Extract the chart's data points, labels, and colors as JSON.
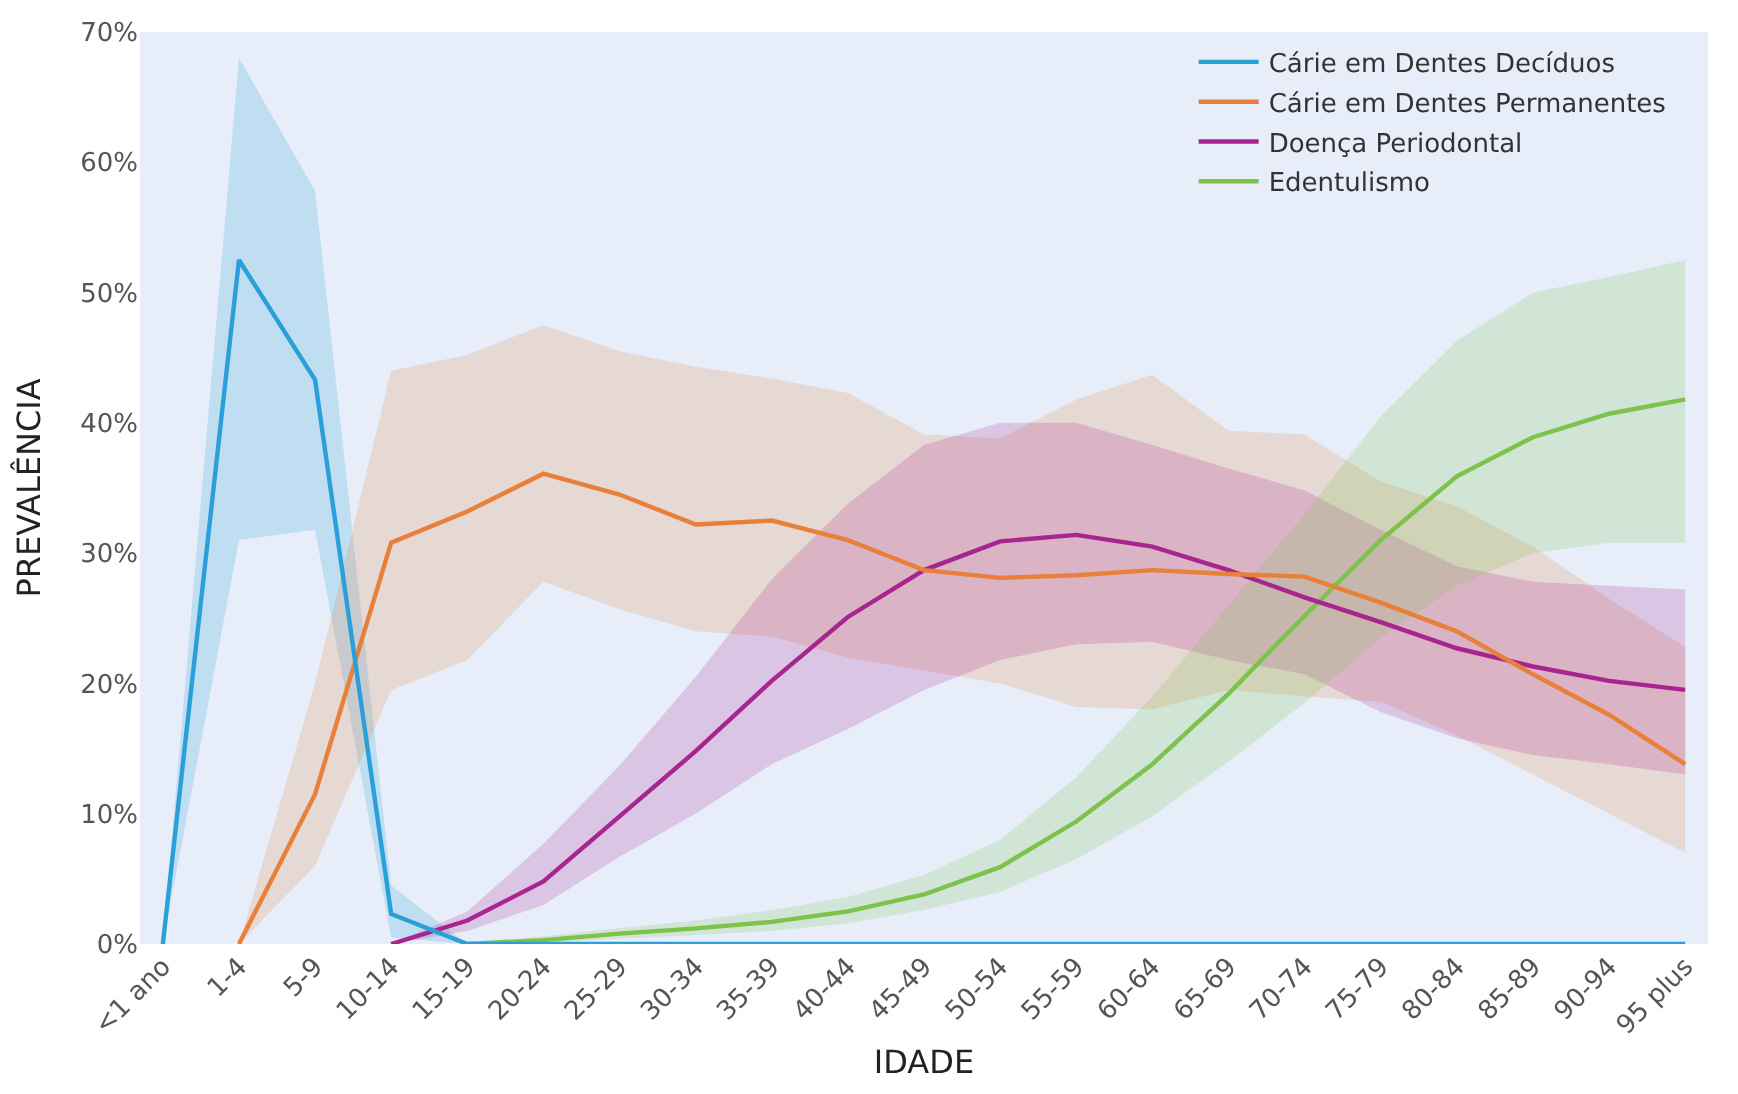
{
  "chart_data": {
    "type": "line",
    "xlabel": "IDADE",
    "ylabel": "PREVALÊNCIA",
    "legend": "top right",
    "grid": false,
    "marker": "none",
    "line_style": "solid",
    "categories": [
      "<1 ano",
      "1-4",
      "5-9",
      "10-14",
      "15-19",
      "20-24",
      "25-29",
      "30-34",
      "35-39",
      "40-44",
      "45-49",
      "50-54",
      "55-59",
      "60-64",
      "65-69",
      "70-74",
      "75-79",
      "80-84",
      "85-89",
      "90-94",
      "95 plus"
    ],
    "ylim": [
      0,
      70
    ],
    "yticks": [
      {
        "value": 0,
        "label": "0%"
      },
      {
        "value": 10,
        "label": "10%"
      },
      {
        "value": 20,
        "label": "20%"
      },
      {
        "value": 30,
        "label": "30%"
      },
      {
        "value": 40,
        "label": "40%"
      },
      {
        "value": 50,
        "label": "50%"
      },
      {
        "value": 60,
        "label": "60%"
      },
      {
        "value": 70,
        "label": "70%"
      }
    ],
    "series": [
      {
        "name": "Cárie em Dentes Decíduos",
        "color": "#2a9fd8",
        "values": [
          0,
          52.5,
          43.3,
          2.3,
          0,
          0,
          0,
          0,
          0,
          0,
          0,
          0,
          0,
          0,
          0,
          0,
          0,
          0,
          0,
          0,
          0
        ],
        "lower": [
          0,
          31,
          31.8,
          0.5,
          0,
          0,
          0,
          0,
          0,
          0,
          0,
          0,
          0,
          0,
          0,
          0,
          0,
          0,
          0,
          0,
          0
        ],
        "upper": [
          0,
          68,
          57.8,
          4.5,
          0,
          0,
          0,
          0,
          0,
          0,
          0,
          0,
          0,
          0,
          0,
          0,
          0,
          0,
          0,
          0,
          0
        ]
      },
      {
        "name": "Cárie em Dentes Permanentes",
        "color": "#e8803a",
        "values": [
          null,
          0,
          11.5,
          30.8,
          33.2,
          36.1,
          34.5,
          32.2,
          32.5,
          31,
          28.7,
          28.1,
          28.3,
          28.7,
          28.4,
          28.2,
          26.2,
          24,
          20.7,
          17.6,
          13.8
        ],
        "lower": [
          null,
          0,
          6,
          19.5,
          21.8,
          27.8,
          25.7,
          24,
          23.6,
          22,
          21,
          20,
          18.2,
          18,
          19.5,
          19,
          18.6,
          16,
          13,
          10,
          7
        ],
        "upper": [
          null,
          0,
          20,
          44,
          45.2,
          47.5,
          45.5,
          44.3,
          43.4,
          42.3,
          39.1,
          38.8,
          41.8,
          43.7,
          39.4,
          39.1,
          35.5,
          33.6,
          30.5,
          26.5,
          22.8
        ]
      },
      {
        "name": "Doença Periodontal",
        "color": "#a8258f",
        "values": [
          null,
          null,
          null,
          0,
          1.8,
          4.8,
          9.8,
          14.8,
          20.2,
          25.1,
          28.7,
          30.9,
          31.4,
          30.5,
          28.7,
          26.6,
          24.7,
          22.7,
          21.3,
          20.2,
          19.5
        ],
        "lower": [
          null,
          null,
          null,
          0,
          1,
          3,
          6.7,
          10,
          13.8,
          16.5,
          19.5,
          21.8,
          23,
          23.2,
          21.8,
          20.7,
          17.8,
          15.8,
          14.5,
          13.8,
          13
        ],
        "upper": [
          null,
          null,
          null,
          0,
          2.5,
          7.7,
          13.7,
          20.5,
          28,
          33.8,
          38.3,
          40,
          40,
          38.3,
          36.5,
          34.8,
          31.8,
          29,
          27.8,
          27.5,
          27.2
        ]
      },
      {
        "name": "Edentulismo",
        "color": "#7dc24b",
        "values": [
          null,
          null,
          null,
          null,
          0,
          0.3,
          0.8,
          1.2,
          1.7,
          2.5,
          3.8,
          5.9,
          9.4,
          13.8,
          19.2,
          25.2,
          31,
          35.9,
          38.9,
          40.7,
          41.8
        ],
        "lower": [
          null,
          null,
          null,
          null,
          0,
          0.1,
          0.4,
          0.7,
          1,
          1.6,
          2.6,
          4,
          6.5,
          9.8,
          14,
          18.5,
          23.5,
          27.5,
          30,
          30.8,
          30.8
        ],
        "upper": [
          null,
          null,
          null,
          null,
          0,
          0.6,
          1.2,
          1.8,
          2.6,
          3.6,
          5.3,
          8,
          12.8,
          19,
          26,
          33,
          40.5,
          46.3,
          50,
          51.2,
          52.5
        ]
      }
    ]
  }
}
